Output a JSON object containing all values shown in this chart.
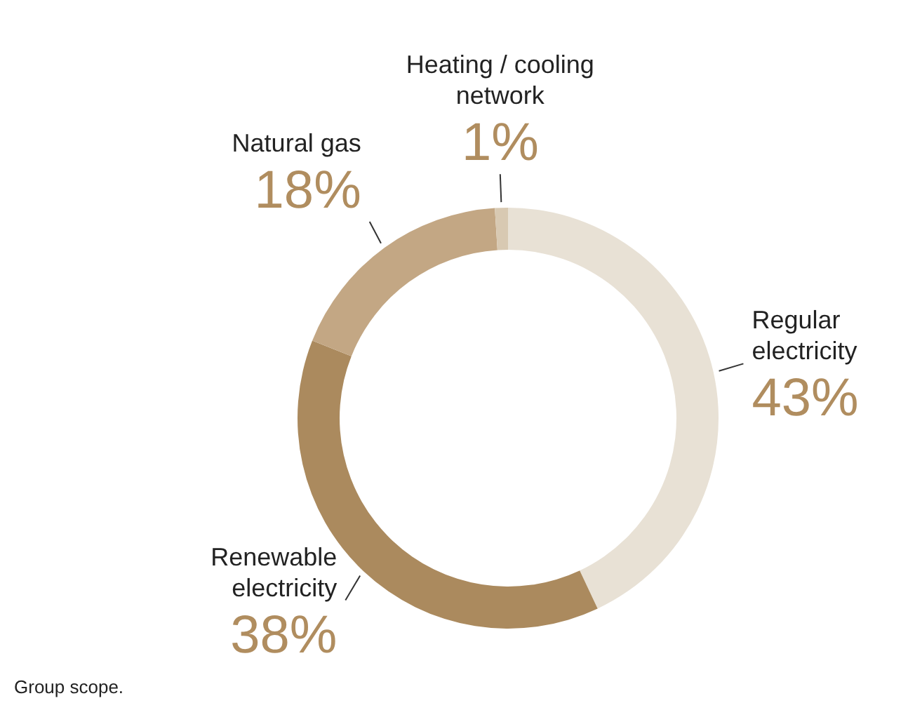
{
  "chart_data": {
    "type": "donut",
    "categories": [
      "Regular electricity",
      "Renewable electricity",
      "Natural gas",
      "Heating / cooling network"
    ],
    "values": [
      43,
      38,
      18,
      1
    ],
    "colors": [
      "#e8e1d5",
      "#ab8a5e",
      "#c3a784",
      "#d8c9b2"
    ],
    "value_labels": [
      "43%",
      "38%",
      "18%",
      "1%"
    ],
    "annotations": [
      "Group scope."
    ]
  }
}
